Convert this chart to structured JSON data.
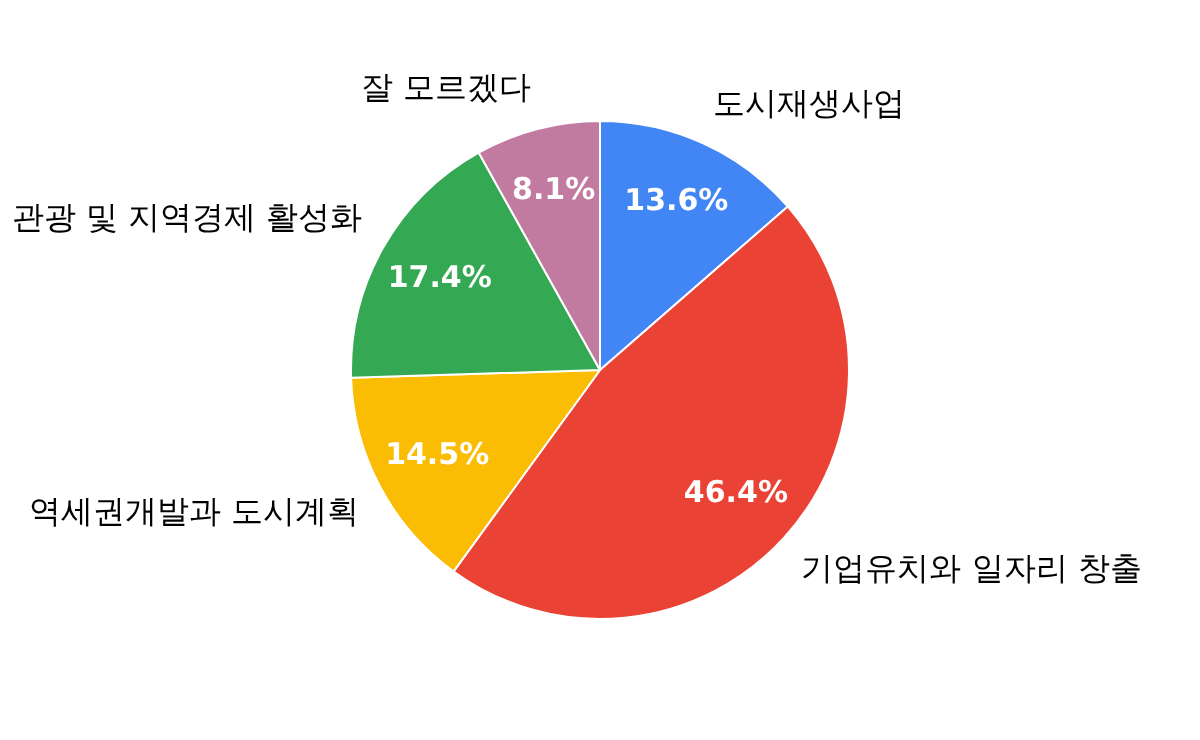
{
  "chart_data": {
    "type": "pie",
    "categories": [
      "도시재생사업",
      "기업유치와 일자리 창출",
      "역세권개발과 도시계획",
      "관광 및 지역경제 활성화",
      "잘 모르겠다"
    ],
    "values": [
      13.6,
      46.4,
      14.5,
      17.4,
      8.1
    ],
    "colors": [
      "#4285f4",
      "#ea4335",
      "#fbbc04",
      "#34a853",
      "#c27ba0"
    ],
    "value_labels": [
      "13.6%",
      "46.4%",
      "14.5%",
      "17.4%",
      "8.1%"
    ]
  }
}
